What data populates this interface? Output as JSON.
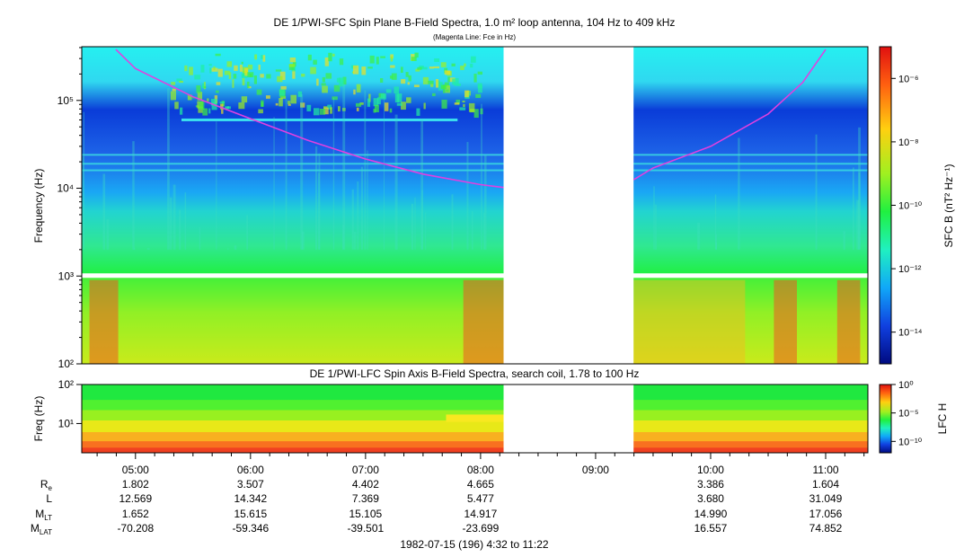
{
  "chart_data": [
    {
      "type": "heatmap",
      "title": "DE 1/PWI-SFC  Spin Plane B-Field Spectra, 1.0 m² loop antenna, 104 Hz to 409 kHz",
      "subtitle": "(Magenta Line: Fce in Hz)",
      "ylabel": "Frequency (Hz)",
      "yscale": "log",
      "ylim": [
        100,
        409000
      ],
      "ytick_labels": [
        "10²",
        "10³",
        "10⁴",
        "10⁵"
      ],
      "ytick_values": [
        100,
        1000,
        10000,
        100000
      ],
      "colorbar_label": "SFC B (nT² Hz⁻¹)",
      "colorbar_scale": "log",
      "colorbar_range": [
        1e-15,
        1e-05
      ],
      "colorbar_tick_labels": [
        "10⁻⁶",
        "10⁻⁸",
        "10⁻¹⁰",
        "10⁻¹²",
        "10⁻¹⁴"
      ],
      "colorbar_tick_values": [
        1e-06,
        1e-08,
        1e-10,
        1e-12,
        1e-14
      ],
      "data_gap_hours": [
        8.2,
        9.33
      ],
      "fce_line": {
        "color": "#e040e0",
        "times_h": [
          4.83,
          5.0,
          5.5,
          6.0,
          6.5,
          7.0,
          7.5,
          8.0,
          8.2,
          9.33,
          9.5,
          10.0,
          10.5,
          10.8,
          11.0
        ],
        "freq_hz": [
          380000,
          230000,
          110000,
          62000,
          35000,
          21500,
          14500,
          11000,
          10200,
          12500,
          17000,
          30000,
          70000,
          160000,
          380000
        ]
      }
    },
    {
      "type": "heatmap",
      "title": "DE 1/PWI-LFC  Spin Axis B-Field Spectra, search coil, 1.78 to 100 Hz",
      "ylabel": "Freq (Hz)",
      "yscale": "log",
      "ylim": [
        1.78,
        100
      ],
      "ytick_labels": [
        "10¹",
        "10²"
      ],
      "ytick_values": [
        10,
        100
      ],
      "colorbar_label": "LFC H",
      "colorbar_scale": "log",
      "colorbar_range": [
        1e-12,
        1
      ],
      "colorbar_tick_labels": [
        "10⁰",
        "10⁻⁵",
        "10⁻¹⁰"
      ],
      "colorbar_tick_values": [
        1,
        1e-05,
        1e-10
      ],
      "data_gap_hours": [
        8.2,
        9.33
      ]
    }
  ],
  "time_axis": {
    "ticks": [
      "05:00",
      "06:00",
      "07:00",
      "08:00",
      "09:00",
      "10:00",
      "11:00"
    ],
    "tick_hours": [
      5,
      6,
      7,
      8,
      9,
      10,
      11
    ],
    "range_hours": [
      4.533,
      11.367
    ]
  },
  "ephemeris": {
    "row_labels": [
      {
        "main": "R",
        "sub": "e"
      },
      {
        "main": "L",
        "sub": ""
      },
      {
        "main": "M",
        "sub": "LT"
      },
      {
        "main": "M",
        "sub": "LAT"
      }
    ],
    "columns": [
      {
        "values": [
          "1.802",
          "12.569",
          "1.652",
          "-70.208"
        ]
      },
      {
        "values": [
          "3.507",
          "14.342",
          "15.615",
          "-59.346"
        ]
      },
      {
        "values": [
          "4.402",
          "7.369",
          "15.105",
          "-39.501"
        ]
      },
      {
        "values": [
          "4.665",
          "5.477",
          "14.917",
          "-23.699"
        ]
      },
      {
        "values": [
          "",
          "",
          "",
          ""
        ]
      },
      {
        "values": [
          "3.386",
          "3.680",
          "14.990",
          "16.557"
        ]
      },
      {
        "values": [
          "1.604",
          "31.049",
          "17.056",
          "74.852"
        ]
      }
    ]
  },
  "footer": {
    "date_label": "1982-07-15 (196) 4:32 to 11:22"
  }
}
